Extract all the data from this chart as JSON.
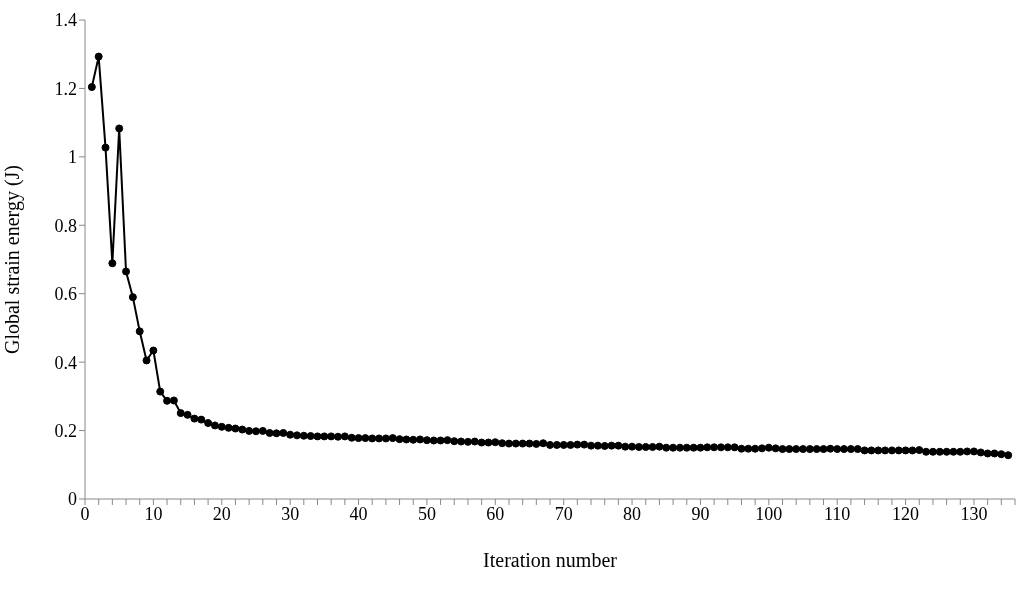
{
  "chart_data": {
    "type": "line",
    "xlabel": "Iteration number",
    "ylabel": "Global strain energy (J)",
    "x": [
      1,
      2,
      3,
      4,
      5,
      6,
      7,
      8,
      9,
      10,
      11,
      12,
      13,
      14,
      15,
      16,
      17,
      18,
      19,
      20,
      21,
      22,
      23,
      24,
      25,
      26,
      27,
      28,
      29,
      30,
      31,
      32,
      33,
      34,
      35,
      36,
      37,
      38,
      39,
      40,
      41,
      42,
      43,
      44,
      45,
      46,
      47,
      48,
      49,
      50,
      51,
      52,
      53,
      54,
      55,
      56,
      57,
      58,
      59,
      60,
      61,
      62,
      63,
      64,
      65,
      66,
      67,
      68,
      69,
      70,
      71,
      72,
      73,
      74,
      75,
      76,
      77,
      78,
      79,
      80,
      81,
      82,
      83,
      84,
      85,
      86,
      87,
      88,
      89,
      90,
      91,
      92,
      93,
      94,
      95,
      96,
      97,
      98,
      99,
      100,
      101,
      102,
      103,
      104,
      105,
      106,
      107,
      108,
      109,
      110,
      111,
      112,
      113,
      114,
      115,
      116,
      117,
      118,
      119,
      120,
      121,
      122,
      123,
      124,
      125,
      126,
      127,
      128,
      129,
      130,
      131,
      132,
      133,
      134,
      135
    ],
    "series": [
      {
        "color": "#000000",
        "values": [
          1.204,
          1.293,
          1.027,
          0.689,
          1.083,
          0.665,
          0.59,
          0.49,
          0.405,
          0.434,
          0.314,
          0.287,
          0.288,
          0.251,
          0.246,
          0.235,
          0.232,
          0.222,
          0.215,
          0.211,
          0.208,
          0.206,
          0.203,
          0.199,
          0.198,
          0.199,
          0.193,
          0.192,
          0.193,
          0.188,
          0.186,
          0.185,
          0.184,
          0.183,
          0.183,
          0.183,
          0.182,
          0.183,
          0.179,
          0.178,
          0.178,
          0.177,
          0.177,
          0.177,
          0.178,
          0.175,
          0.174,
          0.173,
          0.174,
          0.172,
          0.171,
          0.171,
          0.172,
          0.169,
          0.168,
          0.167,
          0.168,
          0.165,
          0.165,
          0.166,
          0.163,
          0.162,
          0.162,
          0.162,
          0.162,
          0.161,
          0.163,
          0.158,
          0.158,
          0.158,
          0.158,
          0.159,
          0.159,
          0.156,
          0.156,
          0.155,
          0.156,
          0.156,
          0.153,
          0.153,
          0.152,
          0.152,
          0.152,
          0.153,
          0.15,
          0.15,
          0.15,
          0.15,
          0.15,
          0.15,
          0.151,
          0.151,
          0.151,
          0.151,
          0.151,
          0.147,
          0.147,
          0.147,
          0.148,
          0.15,
          0.148,
          0.146,
          0.146,
          0.146,
          0.146,
          0.146,
          0.146,
          0.146,
          0.147,
          0.146,
          0.146,
          0.146,
          0.146,
          0.142,
          0.142,
          0.142,
          0.142,
          0.142,
          0.142,
          0.142,
          0.142,
          0.143,
          0.138,
          0.138,
          0.138,
          0.138,
          0.138,
          0.138,
          0.139,
          0.139,
          0.136,
          0.133,
          0.133,
          0.131,
          0.128
        ]
      }
    ],
    "xlim": [
      0,
      136
    ],
    "xticks": [
      0,
      {
        "value": 2,
        "label": null
      },
      {
        "value": 4,
        "label": null
      },
      {
        "value": 6,
        "label": null
      },
      {
        "value": 8,
        "label": null
      },
      10,
      {
        "value": 12,
        "label": null
      },
      {
        "value": 14,
        "label": null
      },
      {
        "value": 16,
        "label": null
      },
      {
        "value": 18,
        "label": null
      },
      20,
      {
        "value": 22,
        "label": null
      },
      {
        "value": 24,
        "label": null
      },
      {
        "value": 26,
        "label": null
      },
      {
        "value": 28,
        "label": null
      },
      30,
      {
        "value": 32,
        "label": null
      },
      {
        "value": 34,
        "label": null
      },
      {
        "value": 36,
        "label": null
      },
      {
        "value": 38,
        "label": null
      },
      40,
      {
        "value": 42,
        "label": null
      },
      {
        "value": 44,
        "label": null
      },
      {
        "value": 46,
        "label": null
      },
      {
        "value": 48,
        "label": null
      },
      50,
      {
        "value": 52,
        "label": null
      },
      {
        "value": 54,
        "label": null
      },
      {
        "value": 56,
        "label": null
      },
      {
        "value": 58,
        "label": null
      },
      60,
      {
        "value": 62,
        "label": null
      },
      {
        "value": 64,
        "label": null
      },
      {
        "value": 66,
        "label": null
      },
      {
        "value": 68,
        "label": null
      },
      70,
      {
        "value": 72,
        "label": null
      },
      {
        "value": 74,
        "label": null
      },
      {
        "value": 76,
        "label": null
      },
      {
        "value": 78,
        "label": null
      },
      80,
      {
        "value": 82,
        "label": null
      },
      {
        "value": 84,
        "label": null
      },
      {
        "value": 86,
        "label": null
      },
      {
        "value": 88,
        "label": null
      },
      90,
      {
        "value": 92,
        "label": null
      },
      {
        "value": 94,
        "label": null
      },
      {
        "value": 96,
        "label": null
      },
      {
        "value": 98,
        "label": null
      },
      100,
      {
        "value": 102,
        "label": null
      },
      {
        "value": 104,
        "label": null
      },
      {
        "value": 106,
        "label": null
      },
      {
        "value": 108,
        "label": null
      },
      110,
      {
        "value": 112,
        "label": null
      },
      {
        "value": 114,
        "label": null
      },
      {
        "value": 116,
        "label": null
      },
      {
        "value": 118,
        "label": null
      },
      120,
      {
        "value": 122,
        "label": null
      },
      {
        "value": 124,
        "label": null
      },
      {
        "value": 126,
        "label": null
      },
      {
        "value": 128,
        "label": null
      },
      130,
      {
        "value": 132,
        "label": null
      },
      {
        "value": 134,
        "label": null
      },
      {
        "value": 136,
        "label": null
      }
    ],
    "ylim": [
      0,
      1.4
    ],
    "yticks": [
      0,
      0.2,
      0.4,
      0.6,
      0.8,
      1,
      1.2,
      1.4
    ],
    "grid": false,
    "legend": false,
    "marker": "circle",
    "line_style": "solid"
  }
}
